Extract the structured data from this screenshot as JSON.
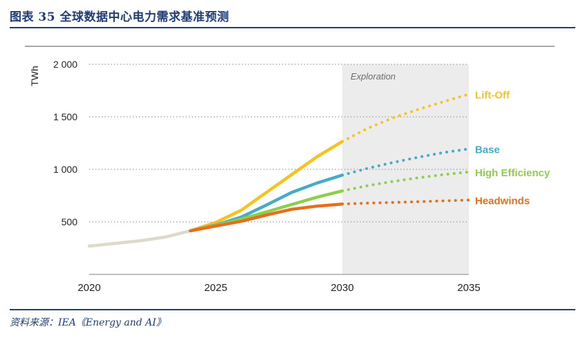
{
  "header": {
    "title": "图表 35   全球数据中心电力需求基准预测"
  },
  "footer": {
    "source": "资料来源：IEA《Energy and AI》"
  },
  "chart_data": {
    "type": "line",
    "title": "",
    "xlabel": "",
    "ylabel": "TWh",
    "xlim": [
      2020,
      2035
    ],
    "ylim": [
      0,
      2000
    ],
    "x_ticks": [
      2020,
      2025,
      2030,
      2035
    ],
    "y_ticks": [
      500,
      1000,
      1500,
      2000
    ],
    "x_tick_labels": [
      "2020",
      "2025",
      "2030",
      "2035"
    ],
    "y_tick_labels": [
      "500",
      "1 000",
      "1 500",
      "2 000"
    ],
    "grid": "horizontal dotted",
    "legend": "inline labels at right",
    "region": {
      "label": "Exploration",
      "x_start": 2030,
      "x_end": 2035
    },
    "historical": {
      "color": "#ddd9cc",
      "points": [
        [
          2020,
          270
        ],
        [
          2021,
          295
        ],
        [
          2022,
          320
        ],
        [
          2023,
          355
        ],
        [
          2024,
          415
        ]
      ]
    },
    "series": [
      {
        "name": "Lift-Off",
        "color": "#f7c11e",
        "solid": [
          [
            2024,
            415
          ],
          [
            2025,
            495
          ],
          [
            2026,
            610
          ],
          [
            2027,
            780
          ],
          [
            2028,
            950
          ],
          [
            2029,
            1120
          ],
          [
            2030,
            1265
          ]
        ],
        "dotted": [
          [
            2030,
            1265
          ],
          [
            2031,
            1390
          ],
          [
            2032,
            1490
          ],
          [
            2033,
            1570
          ],
          [
            2034,
            1645
          ],
          [
            2035,
            1715
          ]
        ]
      },
      {
        "name": "Base",
        "color": "#47abc6",
        "solid": [
          [
            2024,
            415
          ],
          [
            2025,
            470
          ],
          [
            2026,
            545
          ],
          [
            2027,
            660
          ],
          [
            2028,
            780
          ],
          [
            2029,
            870
          ],
          [
            2030,
            945
          ]
        ],
        "dotted": [
          [
            2030,
            945
          ],
          [
            2031,
            1010
          ],
          [
            2032,
            1065
          ],
          [
            2033,
            1115
          ],
          [
            2034,
            1160
          ],
          [
            2035,
            1195
          ]
        ]
      },
      {
        "name": "High Efficiency",
        "color": "#8bcf4a",
        "solid": [
          [
            2024,
            415
          ],
          [
            2025,
            465
          ],
          [
            2026,
            525
          ],
          [
            2027,
            595
          ],
          [
            2028,
            665
          ],
          [
            2029,
            735
          ],
          [
            2030,
            795
          ]
        ],
        "dotted": [
          [
            2030,
            795
          ],
          [
            2031,
            845
          ],
          [
            2032,
            885
          ],
          [
            2033,
            920
          ],
          [
            2034,
            950
          ],
          [
            2035,
            975
          ]
        ]
      },
      {
        "name": "Headwinds",
        "color": "#e56f1c",
        "solid": [
          [
            2024,
            415
          ],
          [
            2025,
            460
          ],
          [
            2026,
            505
          ],
          [
            2027,
            565
          ],
          [
            2028,
            620
          ],
          [
            2029,
            650
          ],
          [
            2030,
            670
          ]
        ],
        "dotted": [
          [
            2030,
            670
          ],
          [
            2031,
            678
          ],
          [
            2032,
            685
          ],
          [
            2033,
            692
          ],
          [
            2034,
            700
          ],
          [
            2035,
            708
          ]
        ]
      }
    ]
  }
}
